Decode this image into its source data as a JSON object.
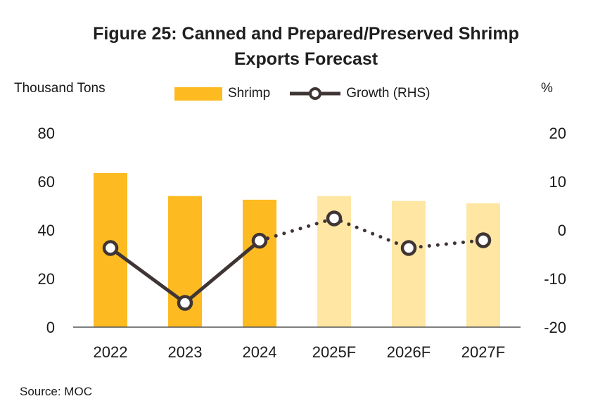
{
  "title_line1": "Figure 25: Canned and Prepared/Preserved Shrimp",
  "title_line2": "Exports Forecast",
  "left_axis_unit": "Thousand Tons",
  "right_axis_unit": "%",
  "source": "Source: MOC",
  "chart_data": {
    "type": "bar",
    "title": "Figure 25: Canned and Prepared/Preserved Shrimp Exports Forecast",
    "categories": [
      "2022",
      "2023",
      "2024",
      "2025F",
      "2026F",
      "2027F"
    ],
    "forecast": [
      false,
      false,
      false,
      true,
      true,
      true
    ],
    "series": [
      {
        "name": "Shrimp",
        "kind": "bar",
        "axis": "left",
        "values": [
          63.5,
          54,
          52.5,
          54,
          52,
          51
        ]
      },
      {
        "name": "Growth (RHS)",
        "kind": "line",
        "axis": "right",
        "values": [
          -3.7,
          -15,
          -2.2,
          2.4,
          -3.7,
          -2.1
        ]
      }
    ],
    "ylabel": "Thousand Tons",
    "ylabel_right": "%",
    "ylim": [
      0,
      80
    ],
    "ylim_right": [
      -20,
      20
    ],
    "yticks": [
      "0",
      "20",
      "40",
      "60",
      "80"
    ],
    "yticks_right": [
      "-20",
      "-10",
      "0",
      "10",
      "20"
    ],
    "grid": false,
    "legend_position": "top-center",
    "colors": {
      "bar_actual": "#FDBA21",
      "bar_forecast": "#FFE6A3",
      "line": "#3F3534",
      "axis": "#555555"
    }
  }
}
